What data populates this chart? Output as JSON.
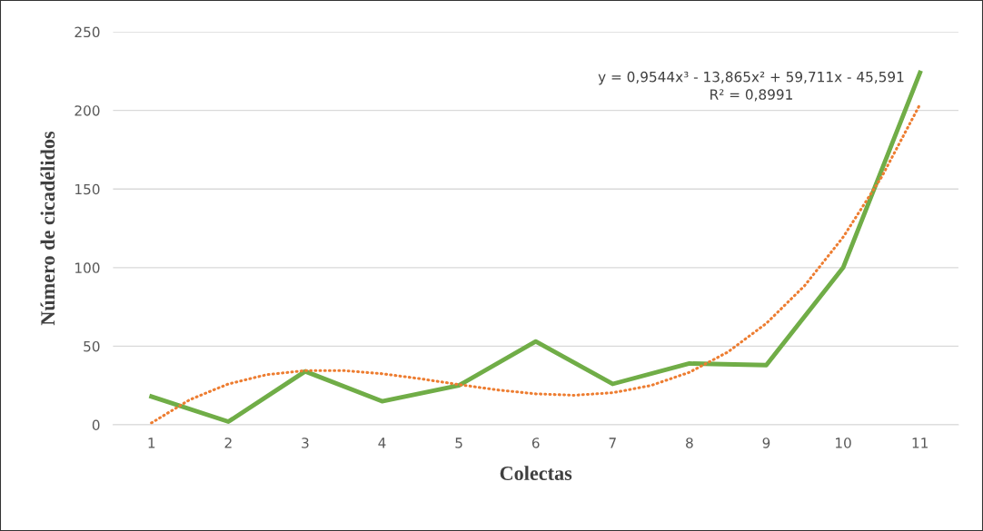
{
  "chart_data": {
    "type": "line",
    "xlabel": "Colectas",
    "ylabel": "Número de cicadélidos",
    "x": [
      1,
      2,
      3,
      4,
      5,
      6,
      7,
      8,
      9,
      10,
      11
    ],
    "series": [
      {
        "color": "#70ad47",
        "values": [
          18,
          2,
          34,
          15,
          25,
          53,
          26,
          39,
          38,
          100,
          224
        ],
        "line_style": "solid"
      },
      {
        "color": "#ed7d31",
        "x": [
          1,
          1.5,
          2,
          2.5,
          3,
          3.5,
          4,
          4.5,
          5,
          5.5,
          6,
          6.5,
          7,
          7.5,
          8,
          8.5,
          9,
          9.5,
          10,
          10.5,
          11
        ],
        "values": [
          1.2,
          16,
          26,
          31.9,
          34.5,
          34.5,
          32.5,
          29.3,
          25.6,
          22.2,
          19.7,
          18.8,
          20.4,
          25,
          33.4,
          46.3,
          64.5,
          88.6,
          119.4,
          157.6,
          203.9
        ],
        "line_style": "dotted"
      }
    ],
    "xlim": [
      0.5,
      11.5
    ],
    "xticks": [
      1,
      2,
      3,
      4,
      5,
      6,
      7,
      8,
      9,
      10,
      11
    ],
    "ylim": [
      0,
      250
    ],
    "yticks": [
      0,
      50,
      100,
      150,
      200,
      250
    ],
    "grid": "y",
    "legend": false,
    "marker": "none",
    "annotations": [
      "y = 0,9544x³ - 13,865x² + 59,711x - 45,591\nR² = 0,8991"
    ]
  }
}
